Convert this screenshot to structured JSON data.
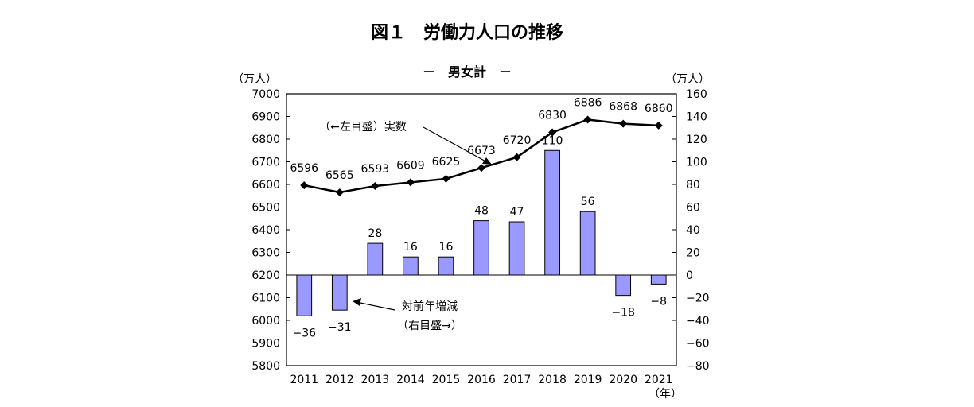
{
  "chart_data": {
    "type": "bar+line",
    "title": "図１　労働力人口の推移",
    "subtitle": "－　男女計　－",
    "left_unit": "（万人）",
    "right_unit": "（万人）",
    "x_unit": "（年）",
    "categories": [
      "2011",
      "2012",
      "2013",
      "2014",
      "2015",
      "2016",
      "2017",
      "2018",
      "2019",
      "2020",
      "2021"
    ],
    "line_series": {
      "name": "（←左目盛）実数",
      "values": [
        6596,
        6565,
        6593,
        6609,
        6625,
        6673,
        6720,
        6830,
        6886,
        6868,
        6860
      ],
      "labels": [
        "6596",
        "6565",
        "6593",
        "6609",
        "6625",
        "6673",
        "6720",
        "6830",
        "6886",
        "6868",
        "6860"
      ],
      "axis": "left",
      "color": "#000000"
    },
    "bar_series": {
      "name_line1": "対前年増減",
      "name_line2": "（右目盛→）",
      "values": [
        -36,
        -31,
        28,
        16,
        16,
        48,
        47,
        110,
        56,
        -18,
        -8
      ],
      "labels": [
        "−36",
        "−31",
        "28",
        "16",
        "16",
        "48",
        "47",
        "110",
        "56",
        "−18",
        "−8"
      ],
      "axis": "right",
      "color": "#9999ff"
    },
    "left_axis": {
      "min": 5800,
      "max": 7000,
      "step": 100,
      "ticks": [
        "7000",
        "6900",
        "6800",
        "6700",
        "6600",
        "6500",
        "6400",
        "6300",
        "6200",
        "6100",
        "6000",
        "5900",
        "5800"
      ]
    },
    "right_axis": {
      "min": -80,
      "max": 160,
      "step": 20,
      "ticks": [
        "160",
        "140",
        "120",
        "100",
        "80",
        "60",
        "40",
        "20",
        "0",
        "−20",
        "−40",
        "−60",
        "−80"
      ]
    },
    "grid": false
  }
}
